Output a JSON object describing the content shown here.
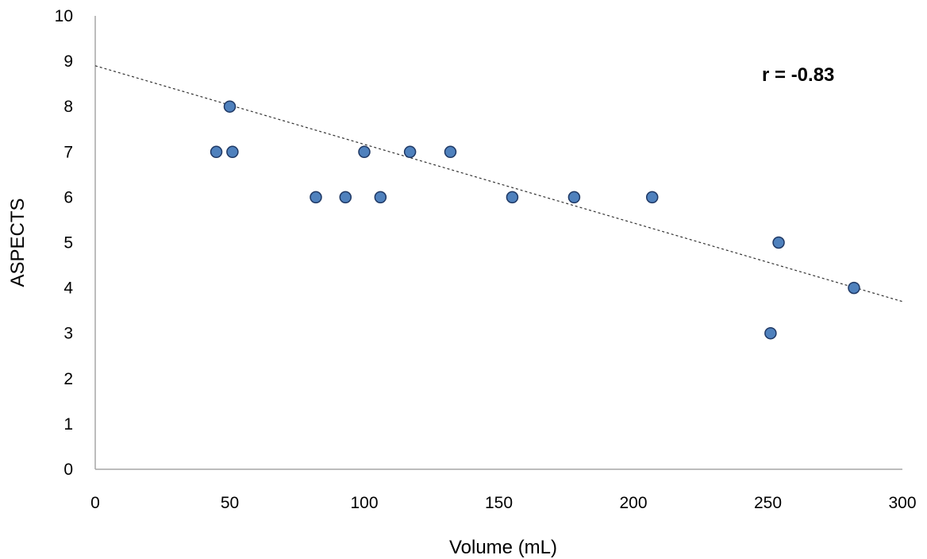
{
  "chart_data": {
    "type": "scatter",
    "title": "",
    "xlabel": "Volume (mL)",
    "ylabel": "ASPECTS",
    "xlim": [
      0,
      300
    ],
    "ylim": [
      0,
      10
    ],
    "x_ticks": [
      "0",
      "50",
      "100",
      "150",
      "200",
      "250",
      "300"
    ],
    "y_ticks": [
      "0",
      "1",
      "2",
      "3",
      "4",
      "5",
      "6",
      "7",
      "8",
      "9",
      "10"
    ],
    "grid": false,
    "legend": "none",
    "annotation": "r = -0.83",
    "points": [
      {
        "x": 45,
        "y": 7
      },
      {
        "x": 50,
        "y": 8
      },
      {
        "x": 51,
        "y": 7
      },
      {
        "x": 82,
        "y": 6
      },
      {
        "x": 93,
        "y": 6
      },
      {
        "x": 100,
        "y": 7
      },
      {
        "x": 106,
        "y": 6
      },
      {
        "x": 117,
        "y": 7
      },
      {
        "x": 132,
        "y": 7
      },
      {
        "x": 155,
        "y": 6
      },
      {
        "x": 178,
        "y": 6
      },
      {
        "x": 207,
        "y": 6
      },
      {
        "x": 251,
        "y": 3
      },
      {
        "x": 254,
        "y": 5
      },
      {
        "x": 282,
        "y": 4
      }
    ],
    "trendline": {
      "style": "dashed",
      "from": {
        "x": 0,
        "y": 8.9
      },
      "to": {
        "x": 300,
        "y": 3.7
      }
    },
    "colors": {
      "marker_fill": "#4F81BD",
      "marker_stroke": "#1F3864",
      "axis": "#A6A6A6",
      "trendline": "#333333"
    }
  }
}
